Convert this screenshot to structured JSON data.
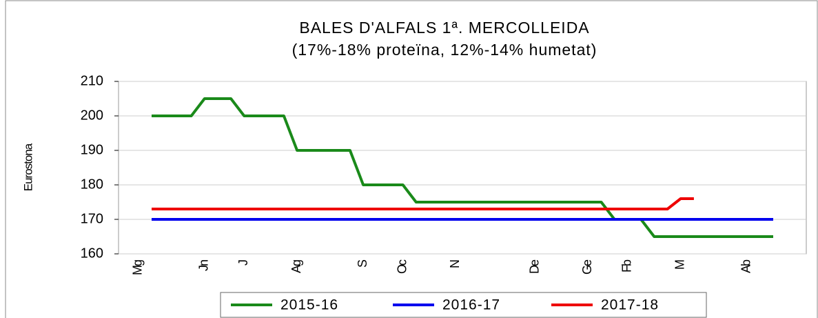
{
  "chart_data": {
    "type": "line",
    "title": "BALES D'ALFALS 1ª. MERCOLLEIDA",
    "subtitle": "(17%-18% proteïna, 12%-14% humetat)",
    "y_label": "Eurostona",
    "categories": [
      null,
      "Mg",
      null,
      null,
      null,
      null,
      "Jn",
      null,
      null,
      "J",
      null,
      null,
      null,
      "Ag",
      null,
      null,
      null,
      null,
      "S",
      null,
      null,
      "Oc",
      null,
      null,
      null,
      "N",
      null,
      null,
      null,
      null,
      null,
      "De",
      null,
      null,
      null,
      "Ge",
      null,
      null,
      "Fb",
      null,
      null,
      null,
      "M",
      null,
      null,
      null,
      null,
      "Ab",
      null,
      null,
      null,
      null
    ],
    "series": [
      {
        "name": "2015-16",
        "color": "#1a8a1a",
        "values": [
          null,
          null,
          200,
          200,
          200,
          200,
          205,
          205,
          205,
          200,
          200,
          200,
          200,
          190,
          190,
          190,
          190,
          190,
          180,
          180,
          180,
          180,
          175,
          175,
          175,
          175,
          175,
          175,
          175,
          175,
          175,
          175,
          175,
          175,
          175,
          175,
          175,
          170,
          170,
          170,
          165,
          165,
          165,
          165,
          165,
          165,
          165,
          165,
          165,
          165,
          null,
          null
        ]
      },
      {
        "name": "2016-17",
        "color": "#0000ee",
        "values": [
          null,
          null,
          170,
          170,
          170,
          170,
          170,
          170,
          170,
          170,
          170,
          170,
          170,
          170,
          170,
          170,
          170,
          170,
          170,
          170,
          170,
          170,
          170,
          170,
          170,
          170,
          170,
          170,
          170,
          170,
          170,
          170,
          170,
          170,
          170,
          170,
          170,
          170,
          170,
          170,
          170,
          170,
          170,
          170,
          170,
          170,
          170,
          170,
          170,
          170,
          null,
          null
        ]
      },
      {
        "name": "2017-18",
        "color": "#ee0000",
        "values": [
          null,
          null,
          173,
          173,
          173,
          173,
          173,
          173,
          173,
          173,
          173,
          173,
          173,
          173,
          173,
          173,
          173,
          173,
          173,
          173,
          173,
          173,
          173,
          173,
          173,
          173,
          173,
          173,
          173,
          173,
          173,
          173,
          173,
          173,
          173,
          173,
          173,
          173,
          173,
          173,
          173,
          173,
          176,
          176,
          null,
          null,
          null,
          null,
          null,
          null,
          null,
          null
        ]
      }
    ],
    "ylim": [
      160,
      210
    ],
    "yticks": [
      160,
      170,
      180,
      190,
      200,
      210
    ],
    "grid": true,
    "legend": "bottom"
  }
}
